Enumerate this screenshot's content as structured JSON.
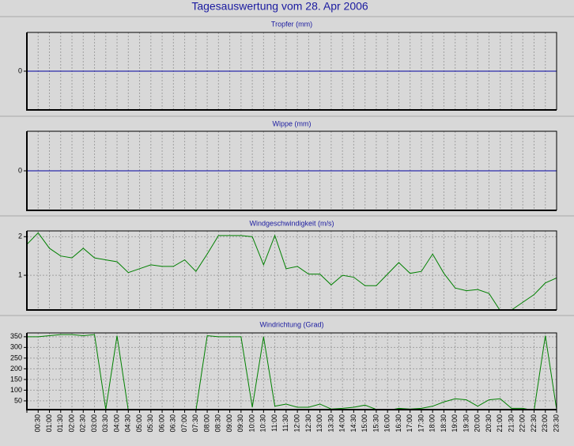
{
  "title": "Tagesauswertung vom 28. Apr 2006",
  "chart_data": [
    {
      "type": "line",
      "title": "Tropfer (mm)",
      "ylim": [
        -1,
        1
      ],
      "yticks": [
        0
      ],
      "color": "#0000a0",
      "values": [
        0,
        0,
        0,
        0,
        0,
        0,
        0,
        0,
        0,
        0,
        0,
        0,
        0,
        0,
        0,
        0,
        0,
        0,
        0,
        0,
        0,
        0,
        0,
        0,
        0,
        0,
        0,
        0,
        0,
        0,
        0,
        0,
        0,
        0,
        0,
        0,
        0,
        0,
        0,
        0,
        0,
        0,
        0,
        0,
        0,
        0,
        0,
        0
      ]
    },
    {
      "type": "line",
      "title": "Wippe (mm)",
      "ylim": [
        -1,
        1
      ],
      "yticks": [
        0
      ],
      "color": "#0000a0",
      "values": [
        0,
        0,
        0,
        0,
        0,
        0,
        0,
        0,
        0,
        0,
        0,
        0,
        0,
        0,
        0,
        0,
        0,
        0,
        0,
        0,
        0,
        0,
        0,
        0,
        0,
        0,
        0,
        0,
        0,
        0,
        0,
        0,
        0,
        0,
        0,
        0,
        0,
        0,
        0,
        0,
        0,
        0,
        0,
        0,
        0,
        0,
        0,
        0
      ]
    },
    {
      "type": "line",
      "title": "Windgeschwindigkeit (m/s)",
      "ylim": [
        0.1,
        2.15
      ],
      "yticks": [
        1,
        2
      ],
      "color": "#008000",
      "values": [
        1.8,
        2.1,
        1.7,
        1.5,
        1.45,
        1.7,
        1.45,
        1.4,
        1.35,
        1.07,
        1.17,
        1.27,
        1.23,
        1.23,
        1.4,
        1.1,
        1.55,
        2.03,
        2.03,
        2.03,
        2.0,
        1.27,
        2.03,
        1.17,
        1.23,
        1.03,
        1.03,
        0.75,
        1.0,
        0.95,
        0.73,
        0.73,
        1.03,
        1.33,
        1.05,
        1.1,
        1.55,
        1.05,
        0.67,
        0.6,
        0.63,
        0.53,
        0.08,
        0.1,
        0.3,
        0.5,
        0.8,
        0.93
      ]
    },
    {
      "type": "line",
      "title": "Windrichtung (Grad)",
      "ylim": [
        9,
        368
      ],
      "yticks": [
        50,
        100,
        150,
        200,
        250,
        300,
        350
      ],
      "color": "#008000",
      "categories": [
        null,
        "00:30",
        "01:00",
        "01:30",
        "02:00",
        "02:30",
        "03:00",
        "03:30",
        "04:00",
        "04:30",
        "05:00",
        "05:30",
        "06:00",
        "06:30",
        "07:00",
        "07:30",
        "08:00",
        "08:30",
        "09:00",
        "09:30",
        "10:00",
        "10:30",
        "11:00",
        "11:30",
        "12:00",
        "12:30",
        "13:00",
        "13:30",
        "14:00",
        "14:30",
        "15:00",
        "15:30",
        "16:00",
        "16:30",
        "17:00",
        "17:30",
        "18:00",
        "18:30",
        "19:00",
        "19:30",
        "20:00",
        "20:30",
        "21:00",
        "21:30",
        "22:00",
        "22:30",
        "23:00",
        "23:30"
      ],
      "values": [
        350,
        350,
        355,
        360,
        360,
        355,
        360,
        10,
        355,
        5,
        5,
        5,
        5,
        10,
        5,
        5,
        355,
        350,
        350,
        350,
        20,
        350,
        25,
        35,
        20,
        20,
        35,
        12,
        15,
        20,
        30,
        10,
        5,
        15,
        12,
        15,
        25,
        45,
        60,
        55,
        25,
        55,
        60,
        15,
        15,
        5,
        355,
        10
      ]
    }
  ]
}
